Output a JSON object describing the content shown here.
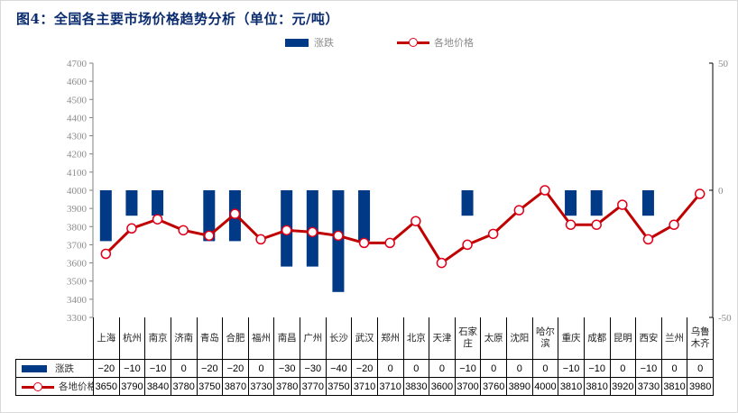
{
  "title": "图4：全国各主要市场价格趋势分析（单位：元/吨）",
  "legend": {
    "bar_label": "涨跌",
    "line_label": "各地价格"
  },
  "colors": {
    "bar": "#003a87",
    "line": "#c00000",
    "marker_edge": "#e0001a",
    "title": "#0a2c6e"
  },
  "chart_data": {
    "type": "bar+line",
    "title": "图4：全国各主要市场价格趋势分析（单位：元/吨）",
    "categories": [
      "上海",
      "杭州",
      "南京",
      "济南",
      "青岛",
      "合肥",
      "福州",
      "南昌",
      "广州",
      "长沙",
      "武汉",
      "郑州",
      "北京",
      "天津",
      "石家庄",
      "太原",
      "沈阳",
      "哈尔滨",
      "重庆",
      "成都",
      "昆明",
      "西安",
      "兰州",
      "乌鲁木齐"
    ],
    "series": [
      {
        "name": "涨跌",
        "type": "bar",
        "axis": "right",
        "values": [
          -20,
          -10,
          -10,
          0,
          -20,
          -20,
          0,
          -30,
          -30,
          -40,
          -20,
          0,
          0,
          0,
          -10,
          0,
          0,
          0,
          -10,
          -10,
          0,
          -10,
          0,
          0
        ]
      },
      {
        "name": "各地价格",
        "type": "line",
        "axis": "left",
        "values": [
          3650,
          3790,
          3840,
          3780,
          3750,
          3870,
          3730,
          3780,
          3770,
          3750,
          3710,
          3710,
          3830,
          3600,
          3700,
          3760,
          3890,
          4000,
          3810,
          3810,
          3920,
          3730,
          3810,
          3980
        ]
      }
    ],
    "left_axis": {
      "min": 3300,
      "max": 4700,
      "step": 100,
      "ticks": [
        4700,
        4600,
        4500,
        4400,
        4300,
        4200,
        4100,
        4000,
        3900,
        3800,
        3700,
        3600,
        3500,
        3400,
        3300
      ]
    },
    "right_axis": {
      "min": -50,
      "max": 50,
      "ticks": [
        50,
        0,
        -50
      ]
    },
    "grid": false,
    "legend_position": "top",
    "data_table": true
  },
  "table": {
    "category_labels": [
      "上海",
      "杭州",
      "南京",
      "济南",
      "青岛",
      "合肥",
      "福州",
      "南昌",
      "广州",
      "长沙",
      "武汉",
      "郑州",
      "北京",
      "天津",
      "石家\n庄",
      "太原",
      "沈阳",
      "哈尔\n滨",
      "重庆",
      "成都",
      "昆明",
      "西安",
      "兰州",
      "乌鲁\n木齐"
    ],
    "change_row": {
      "label": "涨跌",
      "values": [
        "−20",
        "−10",
        "−10",
        "0",
        "−20",
        "−20",
        "0",
        "−30",
        "−30",
        "−40",
        "−20",
        "0",
        "0",
        "0",
        "−10",
        "0",
        "0",
        "0",
        "−10",
        "−10",
        "0",
        "−10",
        "0",
        "0"
      ]
    },
    "price_row": {
      "label": "各地价格",
      "values": [
        "3650",
        "3790",
        "3840",
        "3780",
        "3750",
        "3870",
        "3730",
        "3780",
        "3770",
        "3750",
        "3710",
        "3710",
        "3830",
        "3600",
        "3700",
        "3760",
        "3890",
        "4000",
        "3810",
        "3810",
        "3920",
        "3730",
        "3810",
        "3980"
      ]
    }
  }
}
